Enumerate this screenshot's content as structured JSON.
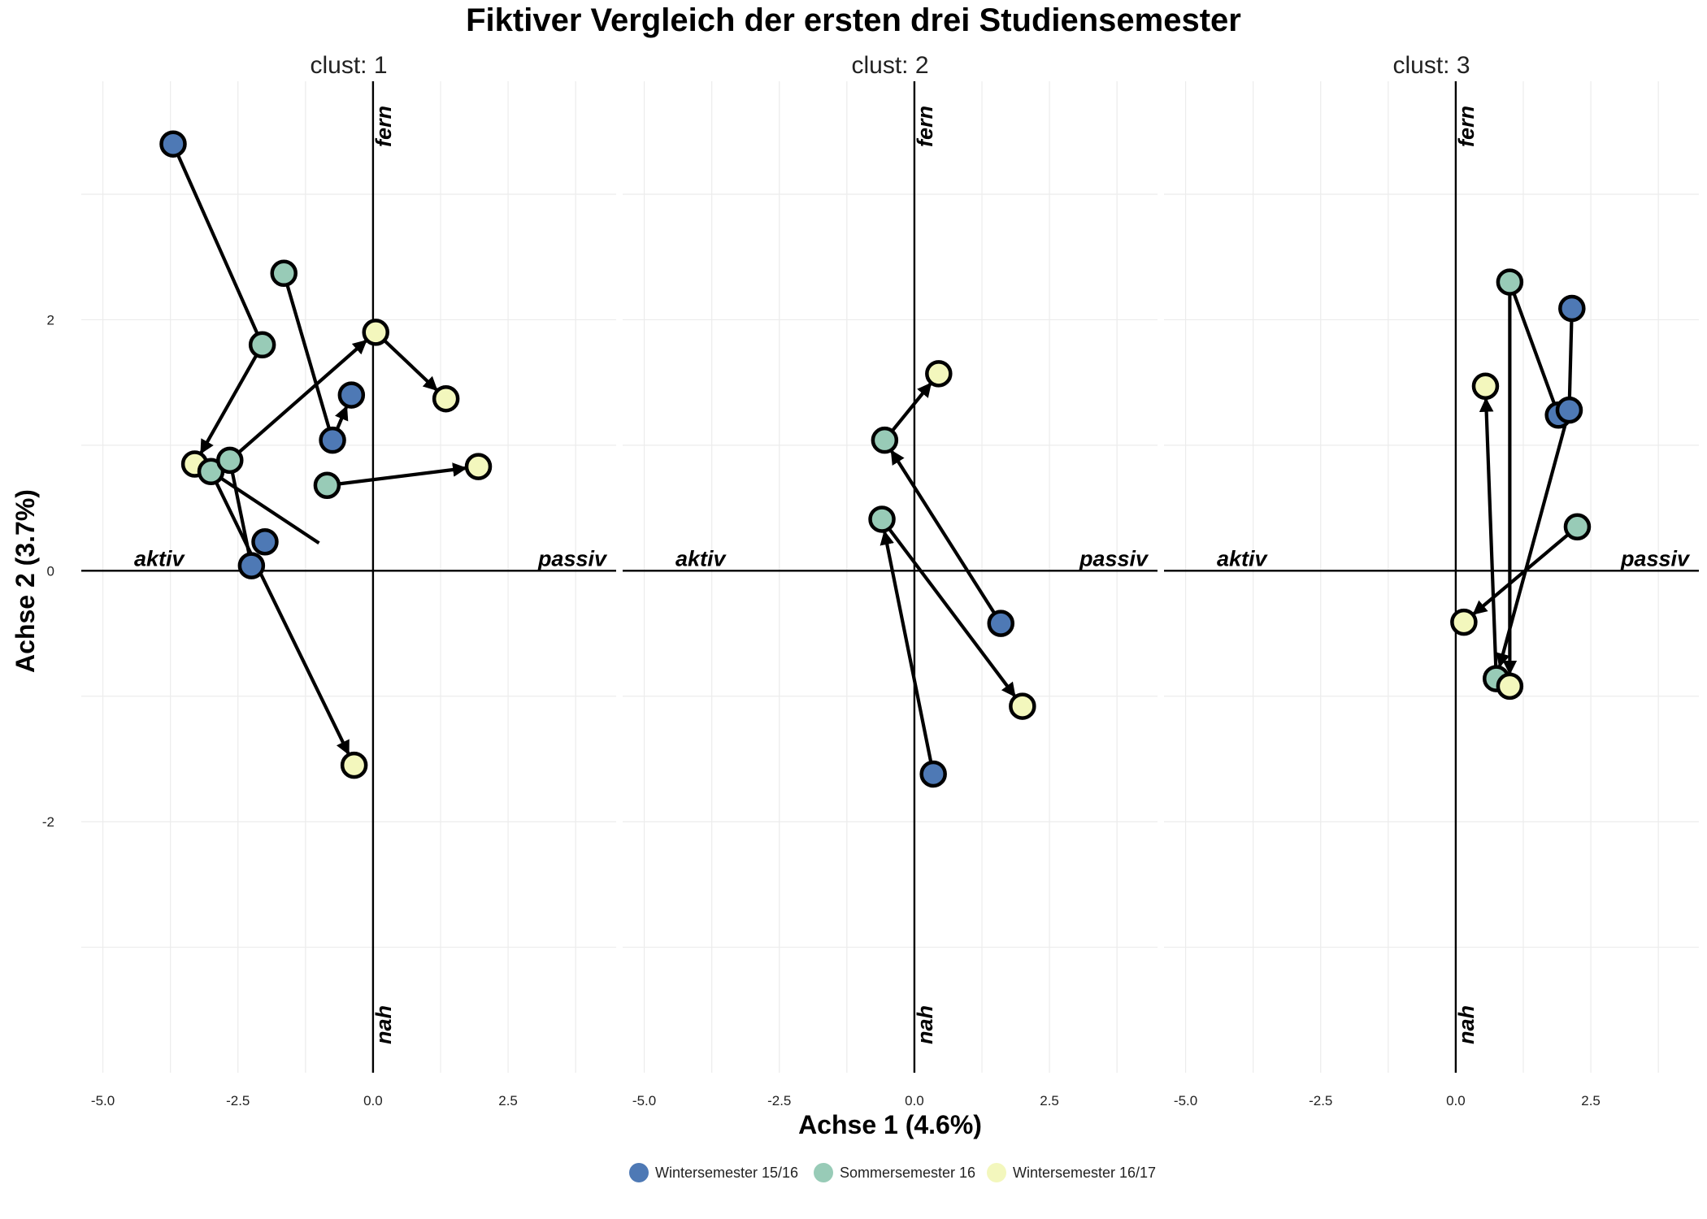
{
  "title": "Fiktiver Vergleich der ersten drei Studiensemester",
  "xlabel": "Achse 1 (4.6%)",
  "ylabel": "Achse 2 (3.7%)",
  "labels": {
    "left": "aktiv",
    "right": "passiv",
    "top": "fern",
    "bottom": "nah"
  },
  "legend": [
    {
      "name": "Wintersemester 15/16",
      "color": "#4e79b5"
    },
    {
      "name": "Sommersemester 16",
      "color": "#98cbb7"
    },
    {
      "name": "Wintersemester 16/17",
      "color": "#f3f7bd"
    }
  ],
  "chart_data": {
    "type": "scatter",
    "facet_label": "clust",
    "xlim": [
      -5.4,
      4.5
    ],
    "ylim": [
      -4.0,
      3.9
    ],
    "x_ticks": [
      -5.0,
      -2.5,
      0.0,
      2.5
    ],
    "x_tick_labels": [
      "-5.0",
      "-2.5",
      "0.0",
      "2.5"
    ],
    "y_ticks": [
      -2,
      0,
      2
    ],
    "y_tick_labels": [
      "-2",
      "0",
      "2"
    ],
    "grid": true,
    "legend_position": "bottom",
    "facets": [
      {
        "label": "clust: 1",
        "tracks": [
          {
            "points": [
              [
                -3.7,
                3.4
              ],
              [
                -2.05,
                1.8
              ],
              [
                -3.3,
                0.85
              ]
            ]
          },
          {
            "points": [
              [
                -1.65,
                2.37
              ],
              [
                -0.75,
                1.04
              ],
              [
                -0.4,
                1.4
              ]
            ]
          },
          {
            "points": [
              [
                -2.25,
                0.04
              ],
              [
                -2.65,
                0.88
              ],
              [
                0.05,
                1.9
              ]
            ]
          },
          {
            "points": [
              [
                -1.0,
                0.22
              ],
              [
                -3.0,
                0.79
              ],
              [
                -0.35,
                -1.55
              ]
            ]
          },
          {
            "points": [
              [
                -0.85,
                0.68
              ],
              [
                -0.85,
                0.68
              ],
              [
                1.95,
                0.83
              ]
            ]
          },
          {
            "points": [
              [
                0.05,
                1.9
              ],
              [
                0.05,
                1.9
              ],
              [
                1.35,
                1.37
              ]
            ]
          }
        ],
        "points": [
          {
            "x": -3.7,
            "y": 3.4,
            "semester": 0
          },
          {
            "x": -2.05,
            "y": 1.8,
            "semester": 1
          },
          {
            "x": -1.65,
            "y": 2.37,
            "semester": 1
          },
          {
            "x": -0.75,
            "y": 1.04,
            "semester": 0
          },
          {
            "x": -0.4,
            "y": 1.4,
            "semester": 0
          },
          {
            "x": 0.05,
            "y": 1.9,
            "semester": 2
          },
          {
            "x": 1.35,
            "y": 1.37,
            "semester": 2
          },
          {
            "x": -0.85,
            "y": 0.68,
            "semester": 1
          },
          {
            "x": 1.95,
            "y": 0.83,
            "semester": 2
          },
          {
            "x": -3.3,
            "y": 0.85,
            "semester": 2
          },
          {
            "x": -3.0,
            "y": 0.79,
            "semester": 1
          },
          {
            "x": -2.65,
            "y": 0.88,
            "semester": 1
          },
          {
            "x": -2.0,
            "y": 0.23,
            "semester": 0
          },
          {
            "x": -2.25,
            "y": 0.04,
            "semester": 0
          },
          {
            "x": -0.35,
            "y": -1.55,
            "semester": 2
          }
        ]
      },
      {
        "label": "clust: 2",
        "tracks": [
          {
            "points": [
              [
                -0.55,
                1.04
              ],
              [
                0.45,
                1.57
              ]
            ]
          },
          {
            "points": [
              [
                1.6,
                -0.42
              ],
              [
                -0.55,
                1.04
              ]
            ]
          },
          {
            "points": [
              [
                -0.6,
                0.41
              ],
              [
                2.0,
                -1.08
              ]
            ]
          },
          {
            "points": [
              [
                0.35,
                -1.62
              ],
              [
                -0.6,
                0.41
              ]
            ]
          }
        ],
        "points": [
          {
            "x": 0.45,
            "y": 1.57,
            "semester": 2
          },
          {
            "x": -0.55,
            "y": 1.04,
            "semester": 1
          },
          {
            "x": -0.6,
            "y": 0.41,
            "semester": 1
          },
          {
            "x": 1.6,
            "y": -0.42,
            "semester": 0
          },
          {
            "x": 2.0,
            "y": -1.08,
            "semester": 2
          },
          {
            "x": 0.35,
            "y": -1.62,
            "semester": 0
          }
        ]
      },
      {
        "label": "clust: 3",
        "tracks": [
          {
            "points": [
              [
                2.15,
                2.09
              ],
              [
                2.1,
                1.28
              ],
              [
                0.75,
                -0.86
              ]
            ]
          },
          {
            "points": [
              [
                1.9,
                1.24
              ],
              [
                1.0,
                2.3
              ],
              [
                1.0,
                -0.92
              ]
            ]
          },
          {
            "points": [
              [
                0.75,
                -0.86
              ],
              [
                0.55,
                1.47
              ]
            ]
          },
          {
            "points": [
              [
                2.25,
                0.35
              ],
              [
                0.15,
                -0.41
              ]
            ]
          }
        ],
        "points": [
          {
            "x": 1.0,
            "y": 2.3,
            "semester": 1
          },
          {
            "x": 2.15,
            "y": 2.09,
            "semester": 0
          },
          {
            "x": 0.55,
            "y": 1.47,
            "semester": 2
          },
          {
            "x": 1.9,
            "y": 1.24,
            "semester": 0
          },
          {
            "x": 2.1,
            "y": 1.28,
            "semester": 0
          },
          {
            "x": 2.25,
            "y": 0.35,
            "semester": 1
          },
          {
            "x": 0.15,
            "y": -0.41,
            "semester": 2
          },
          {
            "x": 0.75,
            "y": -0.86,
            "semester": 1
          },
          {
            "x": 1.0,
            "y": -0.92,
            "semester": 2
          }
        ]
      }
    ]
  }
}
